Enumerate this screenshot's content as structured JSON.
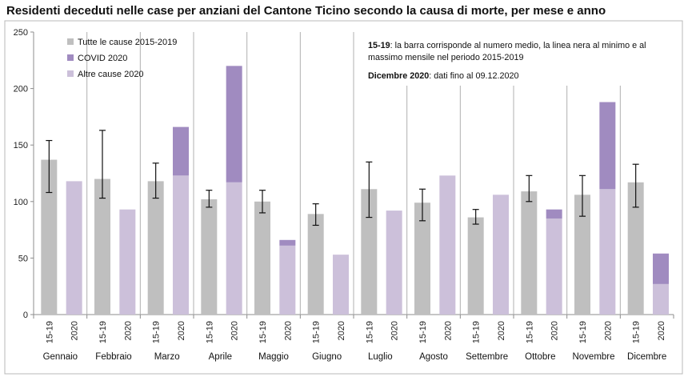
{
  "title": "Residenti deceduti nelle case per anziani del Cantone Ticino secondo la causa di morte, per mese e anno",
  "chart_data": {
    "type": "bar",
    "stacked_2020": true,
    "ylim": [
      0,
      250
    ],
    "yticks": [
      0,
      50,
      100,
      150,
      200,
      250
    ],
    "grid": false,
    "legend_position": "top-left",
    "bar_labels": [
      "15-19",
      "2020"
    ],
    "categories": [
      "Gennaio",
      "Febbraio",
      "Marzo",
      "Aprile",
      "Maggio",
      "Giugno",
      "Luglio",
      "Agosto",
      "Settembre",
      "Ottobre",
      "Novembre",
      "Dicembre"
    ],
    "series": [
      {
        "name": "Tutte le cause 2015-2019",
        "color": "#bfbfbf",
        "values": [
          137,
          120,
          118,
          102,
          100,
          89,
          111,
          99,
          86,
          109,
          106,
          117
        ]
      },
      {
        "name": "Altre cause 2020",
        "color": "#ccc0da",
        "values": [
          118,
          93,
          123,
          117,
          61,
          53,
          92,
          123,
          106,
          85,
          111,
          27
        ]
      },
      {
        "name": "COVID 2020",
        "color": "#a08bc0",
        "values": [
          0,
          0,
          43,
          103,
          5,
          0,
          0,
          0,
          0,
          8,
          77,
          27
        ]
      }
    ],
    "range_2015_2019": {
      "min": [
        108,
        103,
        103,
        95,
        90,
        79,
        86,
        83,
        80,
        100,
        87,
        95
      ],
      "max": [
        154,
        163,
        134,
        110,
        110,
        98,
        135,
        111,
        93,
        123,
        123,
        133
      ]
    },
    "notes": [
      {
        "bold": "15-19",
        "text": ": la barra corrisponde al numero medio, la linea nera al minimo e al"
      },
      {
        "bold": "",
        "text": "massimo mensile nel periodo 2015-2019"
      },
      {
        "bold": "Dicembre 2020",
        "text": ": dati fino al 09.12.2020"
      }
    ]
  }
}
